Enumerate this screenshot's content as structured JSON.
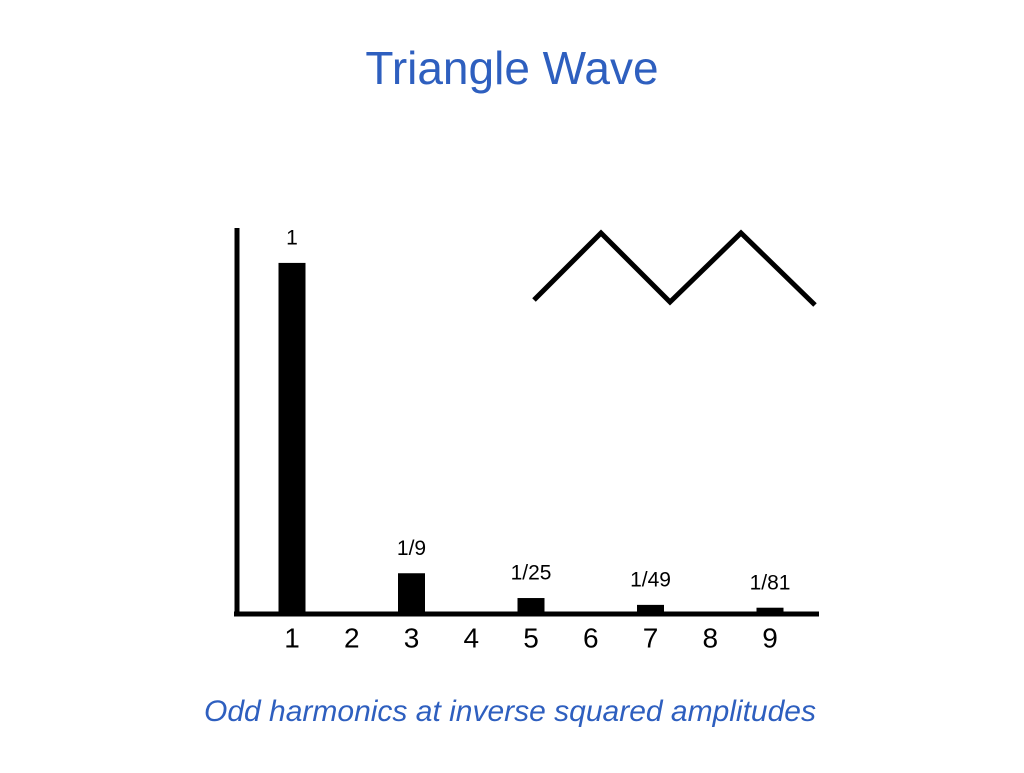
{
  "chart_data": {
    "type": "bar",
    "title": "Triangle Wave",
    "caption": "Odd harmonics at inverse squared amplitudes",
    "categories": [
      "1",
      "2",
      "3",
      "4",
      "5",
      "6",
      "7",
      "8",
      "9"
    ],
    "values": [
      1,
      0,
      0.111,
      0,
      0.04,
      0,
      0.0204,
      0,
      0.0123
    ],
    "value_labels": [
      "1",
      null,
      "1/9",
      null,
      "1/25",
      null,
      "1/49",
      null,
      "1/81"
    ],
    "color": "#000000",
    "ylim": [
      0,
      1.1
    ]
  }
}
